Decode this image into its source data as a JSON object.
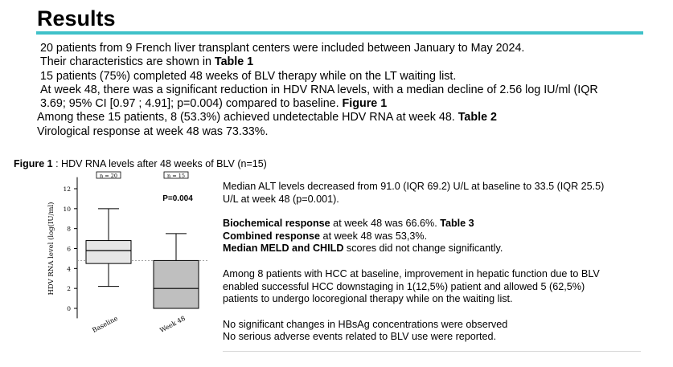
{
  "title": "Results",
  "intro": {
    "line1": "20 patients from 9 French liver transplant centers  were included between January to May  2024.",
    "line2_text": "Their characteristics are shown in ",
    "line2_bold": "Table 1",
    "line3": "15 patients (75%) completed 48 weeks of BLV therapy while on the LT waiting list.",
    "line4": "At week 48, there was a significant reduction in HDV RNA levels, with a median decline of 2.56 log IU/ml (IQR",
    "line5_text": "3.69; 95% CI [0.97 ; 4.91]; p=0.004) compared to baseline. ",
    "line5_bold": "Figure 1",
    "line6_text": "Among these 15 patients, 8 (53.3%) achieved undetectable HDV RNA at week 48.  ",
    "line6_bold": "Table 2",
    "line7": "Virological response at week 48 was 73.33%."
  },
  "figure": {
    "caption_bold": "Figure 1",
    "caption_text": " : HDV RNA levels after 48 weeks of BLV (n=15)"
  },
  "chart_data": {
    "type": "box",
    "categories": [
      "Baseline",
      "Week 48"
    ],
    "n_labels": [
      "n = 20",
      "n = 15"
    ],
    "annotation": "P=0.004",
    "ylabel": "HDV RNA level (log(IU/ml)",
    "yticks": [
      0,
      2,
      4,
      6,
      8,
      10,
      12
    ],
    "ylim": [
      -1,
      13
    ],
    "reference_line": 4.8,
    "boxes": [
      {
        "category": "Baseline",
        "min": 2.2,
        "q1": 4.5,
        "median": 5.8,
        "q3": 6.8,
        "max": 10.0,
        "fill": "#e6e6e6"
      },
      {
        "category": "Week 48",
        "min": 0.0,
        "q1": 0.0,
        "median": 2.0,
        "q3": 4.8,
        "max": 7.5,
        "fill": "#bfbfbf"
      }
    ]
  },
  "right": {
    "alt_line1": "Median ALT levels decreased from 91.0 (IQR 69.2) U/L at baseline to 33.5 (IQR 25.5)",
    "alt_line2": "U/L at week 48 (p=0.001).",
    "bio_bold": "Biochemical response",
    "bio_text": " at week 48 was 66.6%. ",
    "bio_table": "Table 3",
    "comb_bold": "Combined response",
    "comb_text": " at week 48 was 53,3%.",
    "meld_bold": "Median MELD and CHILD",
    "meld_text": " scores did not change significantly.",
    "hcc_line1": "Among 8 patients with HCC at baseline, improvement in hepatic function due to  BLV",
    "hcc_line2": "enabled successful HCC downstaging in 1(12,5%) patient and allowed 5 (62,5%)",
    "hcc_line3": "patients to undergo locoregional therapy while on the waiting list.",
    "final_line1": "No significant changes in HBsAg concentrations were observed",
    "final_line2": "No serious adverse events  related to BLV use were reported."
  }
}
